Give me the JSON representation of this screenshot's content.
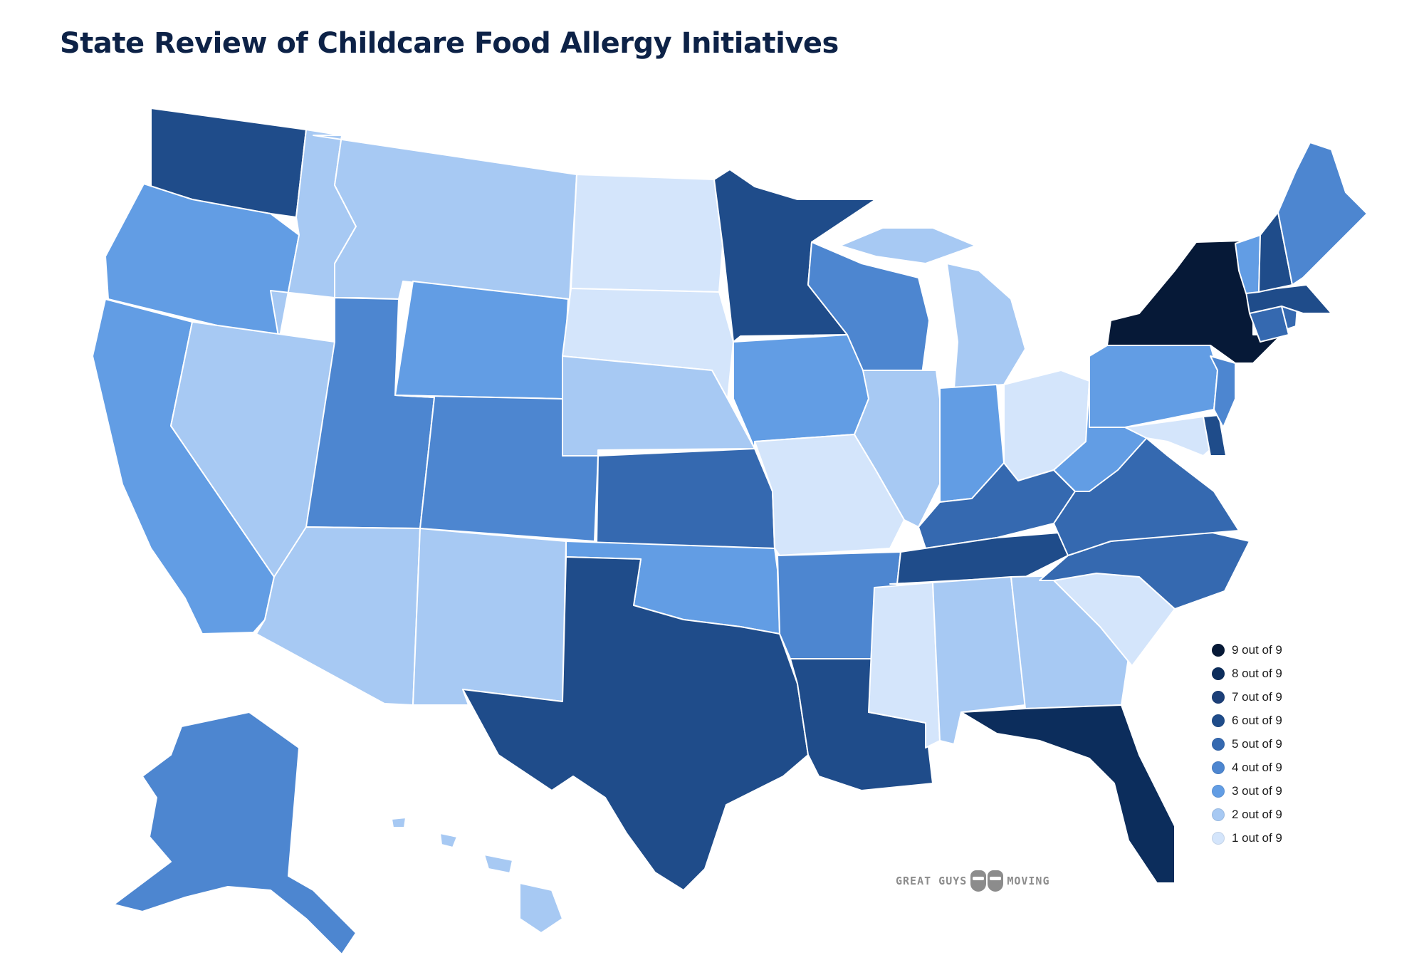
{
  "header": {
    "title": "State Review of Childcare Food Allergy Initiatives"
  },
  "legend": {
    "items": [
      {
        "label": "9 out of 9",
        "score": 9,
        "color": "#061937"
      },
      {
        "label": "8 out of 9",
        "score": 8,
        "color": "#0c2d5c"
      },
      {
        "label": "7 out of 9",
        "score": 7,
        "color": "#1c3f78"
      },
      {
        "label": "6 out of 9",
        "score": 6,
        "color": "#1f4c8a"
      },
      {
        "label": "5 out of 9",
        "score": 5,
        "color": "#3569b0"
      },
      {
        "label": "4 out of 9",
        "score": 4,
        "color": "#4d86d0"
      },
      {
        "label": "3 out of 9",
        "score": 3,
        "color": "#629de4"
      },
      {
        "label": "2 out of 9",
        "score": 2,
        "color": "#a7c9f3"
      },
      {
        "label": "1 out of 9",
        "score": 1,
        "color": "#d4e5fb"
      }
    ]
  },
  "states": {
    "WA": 6,
    "OR": 3,
    "CA": 3,
    "ID": 2,
    "NV": 2,
    "MT": 2,
    "WY": 3,
    "UT": 4,
    "AZ": 2,
    "CO": 4,
    "NM": 2,
    "ND": 1,
    "SD": 1,
    "NE": 2,
    "KS": 5,
    "OK": 3,
    "TX": 6,
    "MN": 6,
    "IA": 3,
    "MO": 1,
    "AR": 4,
    "LA": 6,
    "WI": 4,
    "IL": 2,
    "MI": 2,
    "IN": 3,
    "OH": 1,
    "KY": 5,
    "TN": 6,
    "MS": 1,
    "AL": 2,
    "GA": 2,
    "FL": 8,
    "SC": 1,
    "NC": 5,
    "VA": 5,
    "WV": 3,
    "MD": 1,
    "DE": 6,
    "PA": 3,
    "NJ": 4,
    "NY": 9,
    "CT": 5,
    "RI": 5,
    "MA": 6,
    "VT": 3,
    "NH": 6,
    "ME": 4,
    "AK": 4,
    "HI": 2
  },
  "logo": {
    "left": "GREAT GUYS",
    "right": "MOVING"
  }
}
